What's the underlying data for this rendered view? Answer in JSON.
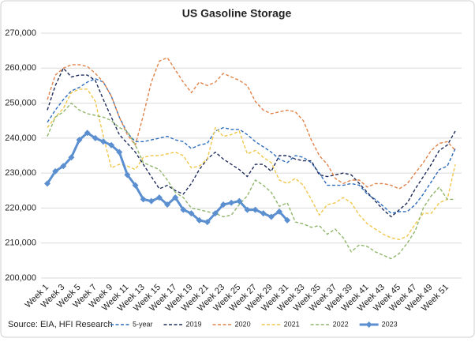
{
  "chart_data": {
    "type": "line",
    "title": "US Gasoline Storage",
    "source": "Source: EIA, HFI Research",
    "categories": [
      "Week 1",
      null,
      "Week 3",
      null,
      "Week 5",
      null,
      "Week 7",
      null,
      "Week 9",
      null,
      "Week 11",
      null,
      "Week 13",
      null,
      "Week 15",
      null,
      "Week 17",
      null,
      "Week 19",
      null,
      "Week 21",
      null,
      "Week 23",
      null,
      "Week 25",
      null,
      "Week 27",
      null,
      "Week 29",
      null,
      "Week 31",
      null,
      "Week 33",
      null,
      "Week 35",
      null,
      "Week 37",
      null,
      "Week 39",
      null,
      "Week 41",
      null,
      "Week 43",
      null,
      "Week 45",
      null,
      "Week 47",
      null,
      "Week 49",
      null,
      "Week 51",
      null
    ],
    "ylim": [
      200000,
      270000
    ],
    "yticks": [
      {
        "value": 200000,
        "label": "200,000"
      },
      {
        "value": 210000,
        "label": "210,000"
      },
      {
        "value": 220000,
        "label": "220,000"
      },
      {
        "value": 230000,
        "label": "230,000"
      },
      {
        "value": 240000,
        "label": "240,000"
      },
      {
        "value": 250000,
        "label": "250,000"
      },
      {
        "value": 260000,
        "label": "260,000"
      },
      {
        "value": 270000,
        "label": "270,000"
      }
    ],
    "grid": true,
    "legend": "bottom",
    "series": [
      {
        "name": "5-year",
        "color": "#2f6ebc",
        "dashed": true,
        "values": [
          244500,
          248000,
          251000,
          253500,
          254500,
          256000,
          257000,
          256000,
          252000,
          246000,
          241500,
          239000,
          239000,
          239500,
          240000,
          240500,
          239500,
          239000,
          237000,
          238000,
          238500,
          242000,
          243000,
          242500,
          242500,
          241000,
          239000,
          237500,
          236000,
          234000,
          233000,
          235000,
          234500,
          233000,
          230000,
          226500,
          226500,
          226500,
          227000,
          226500,
          224000,
          222500,
          220500,
          218500,
          219000,
          219000,
          221000,
          224000,
          227500,
          231000,
          232000,
          237000
        ]
      },
      {
        "name": "2019",
        "color": "#1f2d5a",
        "dashed": true,
        "values": [
          248000,
          255000,
          260000,
          257500,
          258000,
          258000,
          256500,
          251000,
          246000,
          241000,
          238500,
          236000,
          232500,
          229000,
          225500,
          226500,
          225000,
          224000,
          227000,
          231000,
          234000,
          236000,
          234000,
          232500,
          231000,
          229000,
          232500,
          232500,
          230500,
          235000,
          235000,
          234000,
          233500,
          233500,
          229500,
          229000,
          229500,
          230000,
          229500,
          227000,
          224500,
          222000,
          219500,
          217500,
          219500,
          221500,
          225500,
          229000,
          232500,
          236500,
          238000,
          242000
        ]
      },
      {
        "name": "2020",
        "color": "#e0834a",
        "dashed": true,
        "values": [
          251000,
          258000,
          260000,
          261000,
          261000,
          260500,
          258500,
          256000,
          252000,
          246000,
          241000,
          238000,
          246500,
          256000,
          262000,
          263000,
          259500,
          256000,
          253000,
          256000,
          255000,
          256000,
          258500,
          257500,
          256500,
          255000,
          250500,
          248000,
          247000,
          247500,
          248000,
          247500,
          245000,
          239500,
          235000,
          232500,
          228500,
          227000,
          228000,
          228000,
          226000,
          227000,
          227000,
          226500,
          225500,
          227000,
          230000,
          233000,
          236500,
          238500,
          239000,
          236500
        ]
      },
      {
        "name": "2021",
        "color": "#f0c74a",
        "dashed": true,
        "values": [
          243000,
          246000,
          248500,
          253000,
          254000,
          254000,
          250500,
          240500,
          231500,
          232500,
          232000,
          231000,
          234500,
          235000,
          235000,
          235500,
          236000,
          235000,
          231500,
          232000,
          234000,
          243000,
          240500,
          241000,
          242000,
          235500,
          236500,
          234500,
          233000,
          228000,
          227000,
          228500,
          226500,
          222500,
          218000,
          221000,
          221500,
          223000,
          221500,
          218000,
          215500,
          214000,
          212500,
          211500,
          211000,
          212000,
          215500,
          218500,
          218500,
          221500,
          222500,
          232500
        ]
      },
      {
        "name": "2022",
        "color": "#8fb56b",
        "dashed": true,
        "values": [
          240500,
          246000,
          247500,
          250000,
          248000,
          247000,
          246500,
          246000,
          245000,
          243000,
          242000,
          238000,
          233000,
          232000,
          231000,
          228000,
          224500,
          223000,
          220000,
          219500,
          219000,
          218500,
          217500,
          218000,
          221000,
          223500,
          228000,
          226500,
          224500,
          220500,
          221500,
          216000,
          215500,
          214500,
          215000,
          212500,
          214000,
          211500,
          207500,
          209500,
          209000,
          207500,
          206500,
          205500,
          207000,
          210000,
          213500,
          220000,
          223500,
          226000,
          222500,
          222500
        ]
      },
      {
        "name": "2023",
        "color": "#5b8fd0",
        "dashed": false,
        "markers": true,
        "values": [
          227000,
          230500,
          232000,
          234500,
          239500,
          241500,
          240000,
          239000,
          238000,
          236000,
          229500,
          226500,
          222500,
          222000,
          223000,
          221000,
          223000,
          219500,
          218500,
          216500,
          216000,
          218500,
          221000,
          221500,
          222000,
          219500,
          219500,
          218500,
          217500,
          219000,
          216500,
          null,
          null,
          null,
          null,
          null,
          null,
          null,
          null,
          null,
          null,
          null,
          null,
          null,
          null,
          null,
          null,
          null,
          null,
          null,
          null,
          null
        ]
      }
    ]
  }
}
